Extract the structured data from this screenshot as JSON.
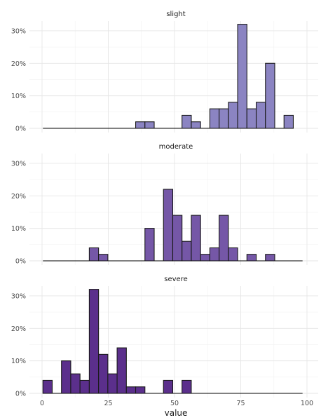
{
  "chart_data": {
    "type": "bar",
    "xlabel": "value",
    "ylabel": "",
    "xlim": [
      0,
      100
    ],
    "ylim": [
      0,
      0.33
    ],
    "x_ticks": [
      {
        "value": 0,
        "label": "0"
      },
      {
        "value": 25,
        "label": "25"
      },
      {
        "value": 50,
        "label": "50"
      },
      {
        "value": 75,
        "label": "75"
      },
      {
        "value": 100,
        "label": "100"
      }
    ],
    "y_ticks": [
      {
        "value": 0,
        "label": "0%"
      },
      {
        "value": 0.1,
        "label": "10%"
      },
      {
        "value": 0.2,
        "label": "20%"
      },
      {
        "value": 0.3,
        "label": "30%"
      }
    ],
    "bin_width": 3.5,
    "bin_start": 0.33,
    "series": [
      {
        "name": "slight",
        "color": "#8b84c2",
        "values": [
          0,
          0,
          0,
          0,
          0,
          0,
          0,
          0,
          0,
          0,
          0.02,
          0.02,
          0,
          0,
          0,
          0.04,
          0.02,
          0,
          0.06,
          0.06,
          0.08,
          0.32,
          0.06,
          0.08,
          0.2,
          0,
          0.04
        ]
      },
      {
        "name": "moderate",
        "color": "#7557a7",
        "values": [
          0,
          0,
          0,
          0,
          0,
          0.04,
          0.02,
          0,
          0,
          0,
          0,
          0.1,
          0,
          0.22,
          0.14,
          0.06,
          0.14,
          0.02,
          0.04,
          0.14,
          0.04,
          0,
          0.02,
          0,
          0.02,
          0,
          0,
          0
        ]
      },
      {
        "name": "severe",
        "color": "#5b2f8c",
        "values": [
          0.04,
          0,
          0.1,
          0.06,
          0.04,
          0.32,
          0.12,
          0.06,
          0.14,
          0.02,
          0.02,
          0,
          0,
          0.04,
          0,
          0.04,
          0,
          0,
          0,
          0,
          0,
          0,
          0,
          0,
          0,
          0,
          0,
          0
        ]
      }
    ],
    "grid": true,
    "legend": "none"
  }
}
